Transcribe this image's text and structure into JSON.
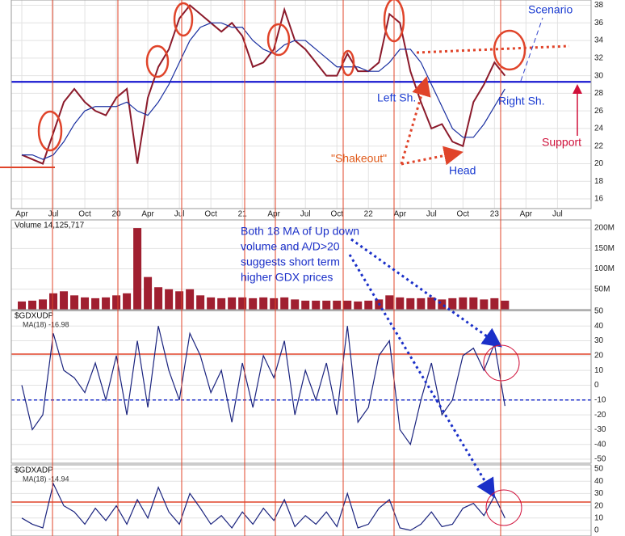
{
  "chart_data": [
    {
      "type": "line",
      "x": [
        0,
        1,
        2,
        3,
        4,
        5,
        6,
        7,
        8,
        9,
        10,
        11,
        12,
        13,
        14,
        15,
        16,
        17,
        18,
        19,
        20,
        21,
        22,
        23,
        24,
        25,
        26,
        27,
        28,
        29,
        30,
        31,
        32,
        33,
        34,
        35,
        36,
        37,
        38,
        39,
        40,
        41,
        42,
        43,
        44,
        45,
        46
      ],
      "series": [
        {
          "color": "#8b1a2b",
          "values": [
            21,
            20.5,
            20,
            23.5,
            27,
            28.5,
            27,
            26,
            25.5,
            27.5,
            28.5,
            20,
            27.5,
            31,
            33,
            36.5,
            38,
            37,
            36,
            35,
            36,
            34.5,
            31,
            31.5,
            33,
            37.5,
            34,
            33,
            31.5,
            30,
            30,
            32.5,
            30.5,
            30.5,
            31.5,
            37,
            36,
            30.5,
            27,
            24,
            24.5,
            22.5,
            22,
            27,
            29,
            31.5,
            30
          ]
        },
        {
          "color": "#1a2fa0",
          "values": [
            21,
            21,
            20.5,
            21,
            22.5,
            24.5,
            26,
            26.5,
            26.5,
            26.5,
            27,
            26,
            25.5,
            27,
            29,
            31.5,
            34,
            35.5,
            36,
            36,
            35.5,
            35.5,
            34,
            33,
            32.5,
            33.5,
            34,
            34,
            33,
            32,
            31,
            31,
            31,
            30.5,
            30.5,
            31.5,
            33,
            33,
            31.5,
            29,
            26.5,
            24,
            23,
            23,
            24.5,
            26.5,
            28.5
          ]
        }
      ],
      "xlim": [
        -1,
        54.2
      ],
      "xticks": [
        {
          "value": 0,
          "label": "Apr"
        },
        {
          "value": 3,
          "label": "Jul"
        },
        {
          "value": 6,
          "label": "Oct"
        },
        {
          "value": 9,
          "label": "20"
        },
        {
          "value": 12,
          "label": "Apr"
        },
        {
          "value": 15,
          "label": "Jul"
        },
        {
          "value": 18,
          "label": "Oct"
        },
        {
          "value": 21,
          "label": "21"
        },
        {
          "value": 24,
          "label": "Apr"
        },
        {
          "value": 27,
          "label": "Jul"
        },
        {
          "value": 30,
          "label": "Oct"
        },
        {
          "value": 33,
          "label": "22"
        },
        {
          "value": 36,
          "label": "Apr"
        },
        {
          "value": 39,
          "label": "Jul"
        },
        {
          "value": 42,
          "label": "Oct"
        },
        {
          "value": 45,
          "label": "23"
        },
        {
          "value": 48,
          "label": "Apr"
        },
        {
          "value": 51,
          "label": "Jul"
        }
      ],
      "ylim": [
        14.9,
        38.6
      ],
      "yticks": [
        16,
        18,
        20,
        22,
        24,
        26,
        28,
        30,
        32,
        34,
        36,
        38
      ],
      "reference_lines": [
        {
          "value": 29.3,
          "color": "#0000cc"
        }
      ],
      "grid": true,
      "annotations": [
        "Scenario",
        "Left Sh.",
        "Right Sh.",
        "Support",
        "\"Shakeout\"",
        "Head"
      ]
    },
    {
      "type": "bar",
      "title": "Volume 14,125,717",
      "color": "#a01f30",
      "x": [
        0,
        1,
        2,
        3,
        4,
        5,
        6,
        7,
        8,
        9,
        10,
        11,
        12,
        13,
        14,
        15,
        16,
        17,
        18,
        19,
        20,
        21,
        22,
        23,
        24,
        25,
        26,
        27,
        28,
        29,
        30,
        31,
        32,
        33,
        34,
        35,
        36,
        37,
        38,
        39,
        40,
        41,
        42,
        43,
        44,
        45,
        46
      ],
      "values": [
        20000000,
        22000000,
        25000000,
        40000000,
        45000000,
        35000000,
        30000000,
        28000000,
        30000000,
        35000000,
        40000000,
        200000000,
        80000000,
        55000000,
        50000000,
        45000000,
        50000000,
        35000000,
        30000000,
        28000000,
        30000000,
        30000000,
        28000000,
        30000000,
        28000000,
        30000000,
        25000000,
        22000000,
        22000000,
        22000000,
        22000000,
        22000000,
        20000000,
        22000000,
        25000000,
        35000000,
        30000000,
        28000000,
        28000000,
        30000000,
        25000000,
        28000000,
        30000000,
        30000000,
        25000000,
        28000000,
        22000000
      ],
      "xlim": [
        -1,
        54.2
      ],
      "ylim": [
        0,
        220000000
      ],
      "yticks": [
        {
          "value": 50000000,
          "label": "50M"
        },
        {
          "value": 100000000,
          "label": "100M"
        },
        {
          "value": 150000000,
          "label": "150M"
        },
        {
          "value": 200000000,
          "label": "200M"
        }
      ],
      "annotations": [
        "Both 18 MA of Up down",
        "volume and A/D>20",
        "suggests short term",
        "higher GDX prices"
      ]
    },
    {
      "type": "line",
      "title": "$GDXUDP",
      "subtitle": "MA(18) -16.98",
      "x": [
        0,
        1,
        2,
        3,
        4,
        5,
        6,
        7,
        8,
        9,
        10,
        11,
        12,
        13,
        14,
        15,
        16,
        17,
        18,
        19,
        20,
        21,
        22,
        23,
        24,
        25,
        26,
        27,
        28,
        29,
        30,
        31,
        32,
        33,
        34,
        35,
        36,
        37,
        38,
        39,
        40,
        41,
        42,
        43,
        44,
        45,
        46
      ],
      "series": [
        {
          "color": "#1a237e",
          "values": [
            0,
            -30,
            -20,
            35,
            10,
            5,
            -5,
            15,
            -10,
            20,
            -20,
            30,
            -15,
            40,
            10,
            -10,
            35,
            20,
            -5,
            10,
            -25,
            15,
            -15,
            20,
            5,
            30,
            -20,
            10,
            -10,
            15,
            -20,
            40,
            -25,
            -15,
            20,
            30,
            -30,
            -40,
            -10,
            15,
            -20,
            -10,
            20,
            25,
            10,
            28,
            -14
          ]
        }
      ],
      "xlim": [
        -1,
        54.2
      ],
      "ylim": [
        -52.7,
        50.5
      ],
      "yticks": [
        -50,
        -40,
        -30,
        -20,
        -10,
        0,
        10,
        20,
        30,
        40,
        50
      ],
      "reference_lines": [
        {
          "value": 21,
          "color": "#e0442a"
        },
        {
          "value": -10,
          "color": "#2233cc"
        }
      ]
    },
    {
      "type": "line",
      "title": "$GDXADP",
      "subtitle": "MA(18) -14.94",
      "x": [
        0,
        1,
        2,
        3,
        4,
        5,
        6,
        7,
        8,
        9,
        10,
        11,
        12,
        13,
        14,
        15,
        16,
        17,
        18,
        19,
        20,
        21,
        22,
        23,
        24,
        25,
        26,
        27,
        28,
        29,
        30,
        31,
        32,
        33,
        34,
        35,
        36,
        37,
        38,
        39,
        40,
        41,
        42,
        43,
        44,
        45,
        46
      ],
      "series": [
        {
          "color": "#1a237e",
          "values": [
            10,
            5,
            2,
            38,
            20,
            15,
            5,
            18,
            8,
            20,
            5,
            25,
            10,
            35,
            15,
            5,
            30,
            18,
            5,
            12,
            2,
            15,
            5,
            18,
            8,
            25,
            3,
            12,
            5,
            15,
            3,
            30,
            2,
            5,
            18,
            25,
            2,
            0,
            5,
            15,
            3,
            5,
            18,
            22,
            12,
            28,
            10
          ]
        }
      ],
      "xlim": [
        -1,
        54.2
      ],
      "ylim": [
        -4.6,
        53.3
      ],
      "yticks": [
        0,
        10,
        20,
        30,
        40,
        50
      ],
      "reference_lines": [
        {
          "value": 23,
          "color": "#e0442a"
        }
      ]
    }
  ]
}
